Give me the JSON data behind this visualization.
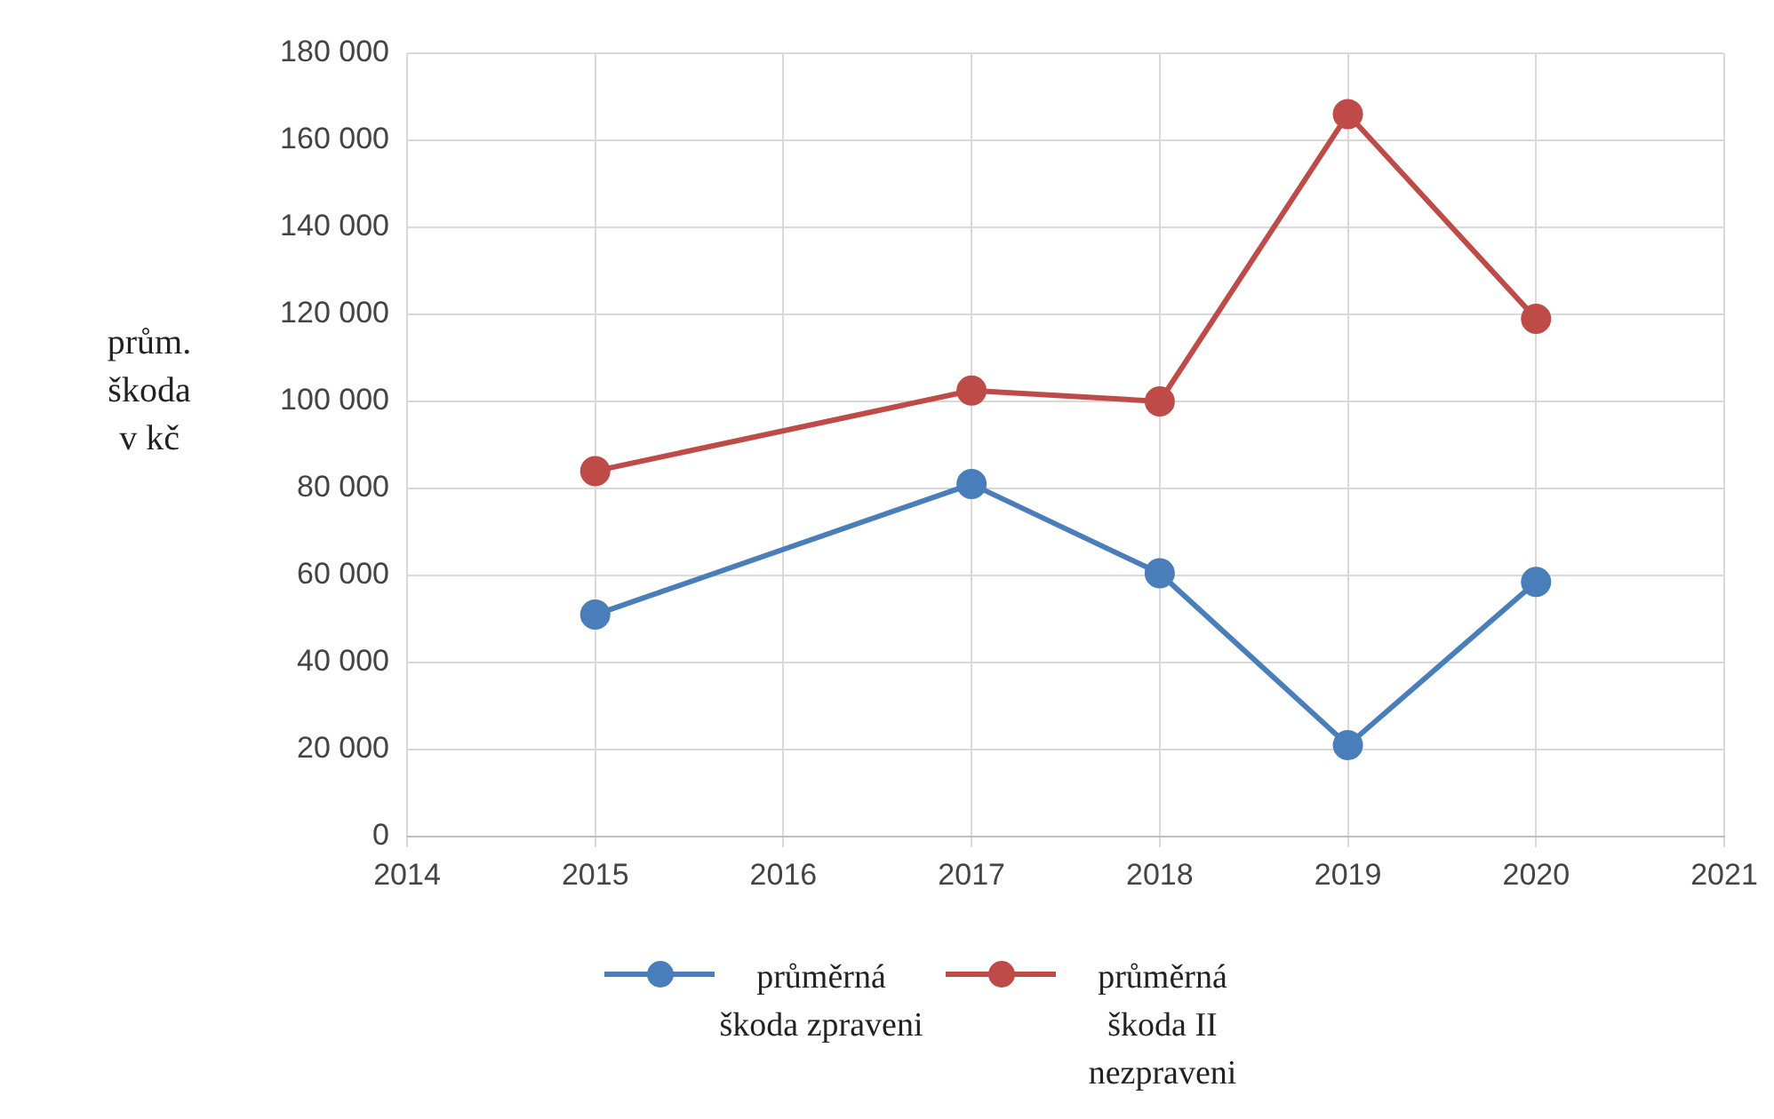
{
  "chart_data": {
    "type": "line",
    "ylabel": "prům. škoda v kč",
    "x": [
      2015,
      2017,
      2018,
      2019,
      2020
    ],
    "series": [
      {
        "name": "průměrná škoda zpraveni",
        "color": "#4a7ebb",
        "values": [
          51000,
          81000,
          60500,
          21000,
          58500
        ]
      },
      {
        "name": "průměrná škoda II nezpraveni",
        "color": "#be4b48",
        "values": [
          84000,
          102500,
          100000,
          166000,
          119000
        ]
      }
    ],
    "xlim": [
      2014,
      2021
    ],
    "xticks": [
      2014,
      2015,
      2016,
      2017,
      2018,
      2019,
      2020,
      2021
    ],
    "ylim": [
      0,
      180000
    ],
    "yticks": [
      0,
      20000,
      40000,
      60000,
      80000,
      100000,
      120000,
      140000,
      160000,
      180000
    ],
    "grid": true,
    "legend": "bottom",
    "marker": "circle",
    "line_style": "solid"
  }
}
